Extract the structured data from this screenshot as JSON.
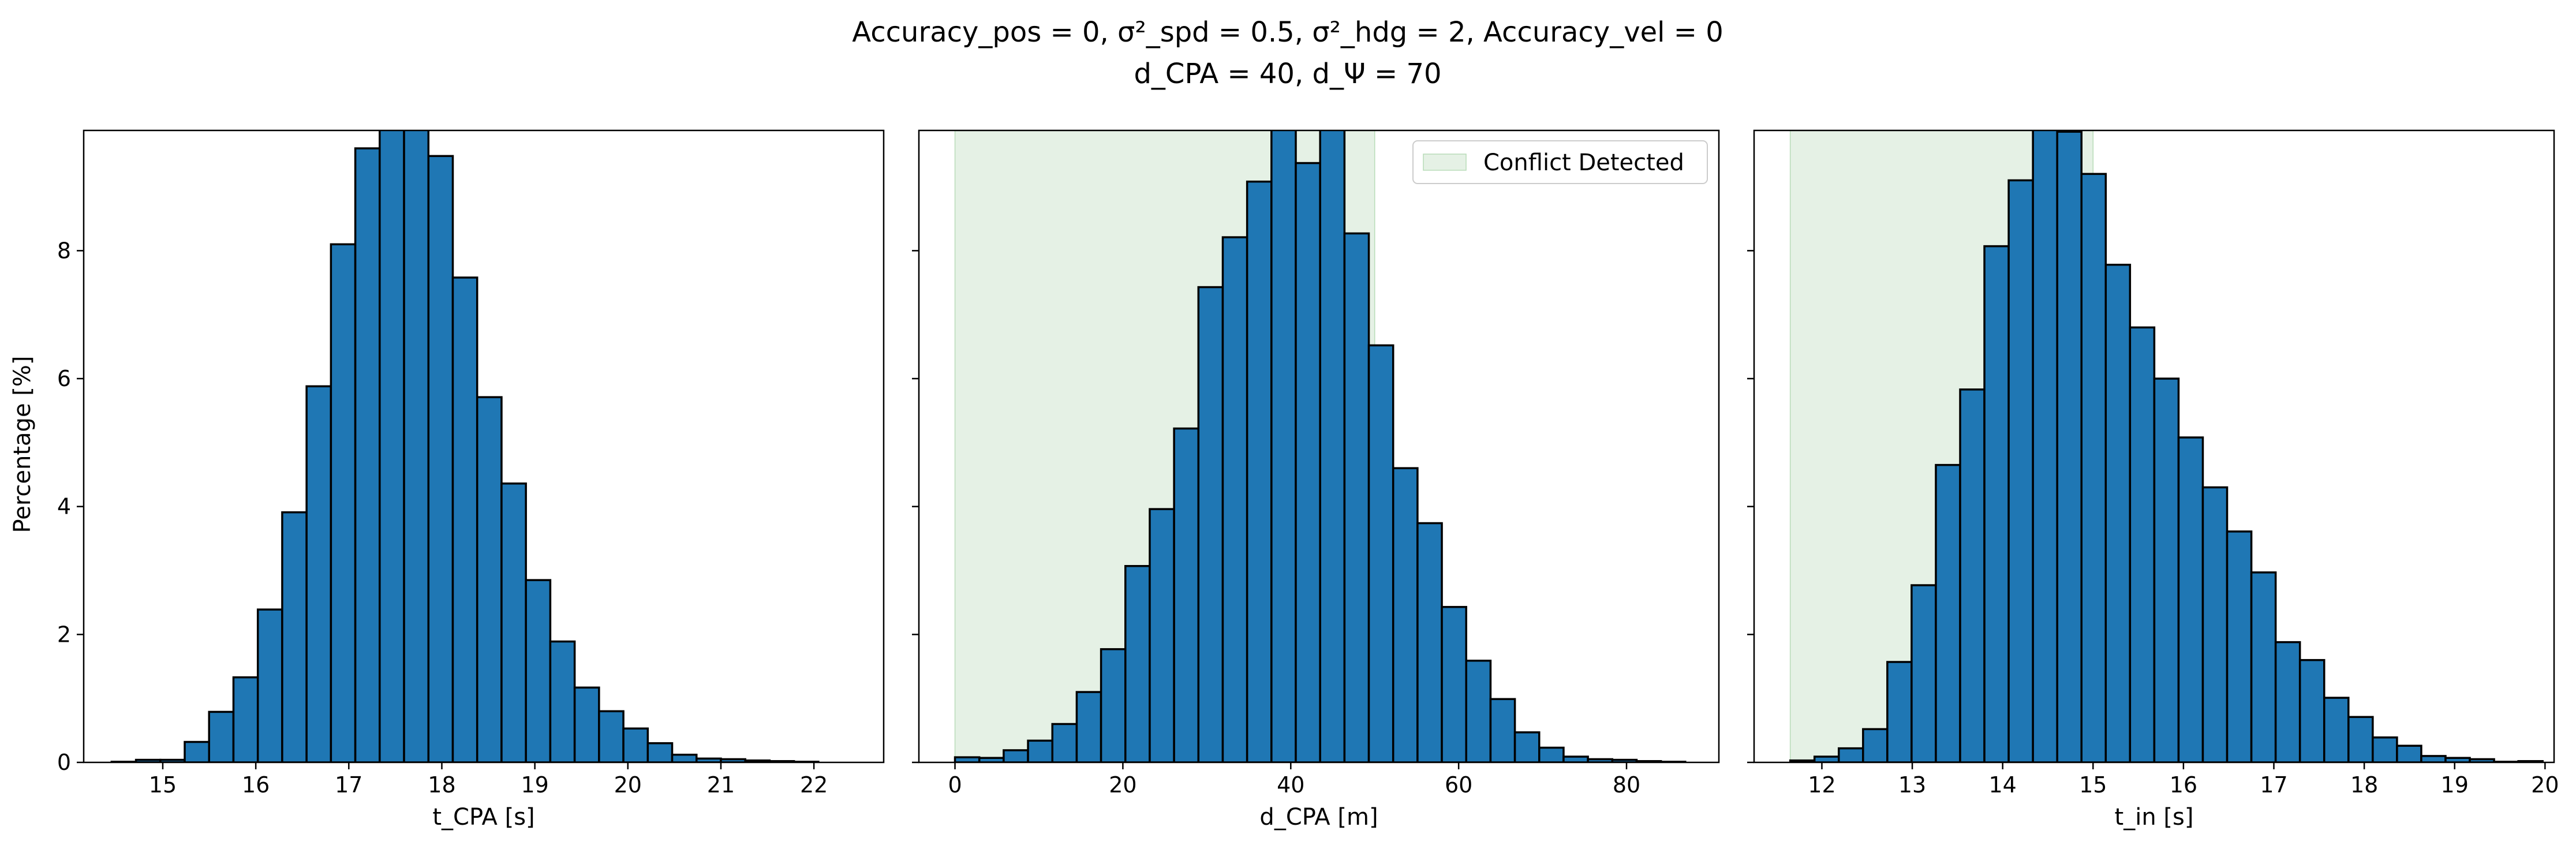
{
  "figure": {
    "title_line1": "Accuracy_pos = 0, σ²_spd = 0.5, σ²_hdg = 2, Accuracy_vel = 0",
    "title_line2": "d_CPA = 40, d_Ψ = 70",
    "shared_ylabel": "Percentage [%]"
  },
  "colors": {
    "bar_fill": "#1f77b4",
    "bar_edge": "#000000",
    "conflict_region": "#e5f1e5",
    "conflict_region_edge": "#b8dcb8"
  },
  "chart_data": [
    {
      "type": "bar",
      "subtype": "histogram",
      "xlabel": "t_CPA [s]",
      "ylabel": "Percentage [%]",
      "xlim": [
        14.15,
        22.75
      ],
      "ylim": [
        0,
        9.88
      ],
      "xticks": [
        15,
        16,
        17,
        18,
        19,
        20,
        21,
        22
      ],
      "yticks": [
        0,
        2,
        4,
        6,
        8
      ],
      "bin_start": 14.45,
      "bin_width": 0.262,
      "values": [
        0.01,
        0.04,
        0.04,
        0.32,
        0.79,
        1.33,
        2.39,
        3.91,
        5.88,
        8.1,
        9.6,
        10.3,
        10.1,
        9.48,
        7.58,
        5.71,
        4.36,
        2.85,
        1.89,
        1.17,
        0.8,
        0.53,
        0.3,
        0.12,
        0.06,
        0.05,
        0.03,
        0.02,
        0.01,
        0.0
      ]
    },
    {
      "type": "bar",
      "subtype": "histogram",
      "xlabel": "d_CPA [m]",
      "ylabel": "",
      "xlim": [
        -4.3,
        91.0
      ],
      "ylim": [
        0,
        9.88
      ],
      "xticks": [
        0,
        20,
        40,
        60,
        80
      ],
      "yticks": [
        0,
        2,
        4,
        6,
        8
      ],
      "bin_start": 0,
      "bin_width": 2.9,
      "values": [
        0.08,
        0.07,
        0.19,
        0.34,
        0.6,
        1.1,
        1.77,
        3.07,
        3.96,
        5.22,
        7.43,
        8.21,
        9.08,
        10.5,
        9.37,
        10.2,
        8.27,
        6.52,
        4.6,
        3.74,
        2.43,
        1.59,
        0.99,
        0.47,
        0.23,
        0.09,
        0.05,
        0.04,
        0.02,
        0.01
      ],
      "shaded_region": {
        "x0": 0,
        "x1": 50
      },
      "legend": {
        "entries": [
          "Conflict Detected"
        ],
        "placement": "top-right"
      }
    },
    {
      "type": "bar",
      "subtype": "histogram",
      "xlabel": "t_in [s]",
      "ylabel": "",
      "xlim": [
        11.25,
        20.1
      ],
      "ylim": [
        0,
        9.88
      ],
      "xticks": [
        12,
        13,
        14,
        15,
        16,
        17,
        18,
        19,
        20
      ],
      "yticks": [
        0,
        2,
        4,
        6,
        8
      ],
      "bin_start": 11.65,
      "bin_width": 0.2685,
      "values": [
        0.03,
        0.09,
        0.22,
        0.52,
        1.57,
        2.77,
        4.65,
        5.83,
        8.07,
        9.1,
        10.2,
        9.86,
        9.2,
        7.78,
        6.8,
        6.0,
        5.08,
        4.3,
        3.61,
        2.97,
        1.88,
        1.6,
        1.01,
        0.71,
        0.39,
        0.26,
        0.1,
        0.07,
        0.05,
        0.01,
        0.02
      ],
      "shaded_region": {
        "x0": 11.65,
        "x1": 15.0
      }
    }
  ]
}
